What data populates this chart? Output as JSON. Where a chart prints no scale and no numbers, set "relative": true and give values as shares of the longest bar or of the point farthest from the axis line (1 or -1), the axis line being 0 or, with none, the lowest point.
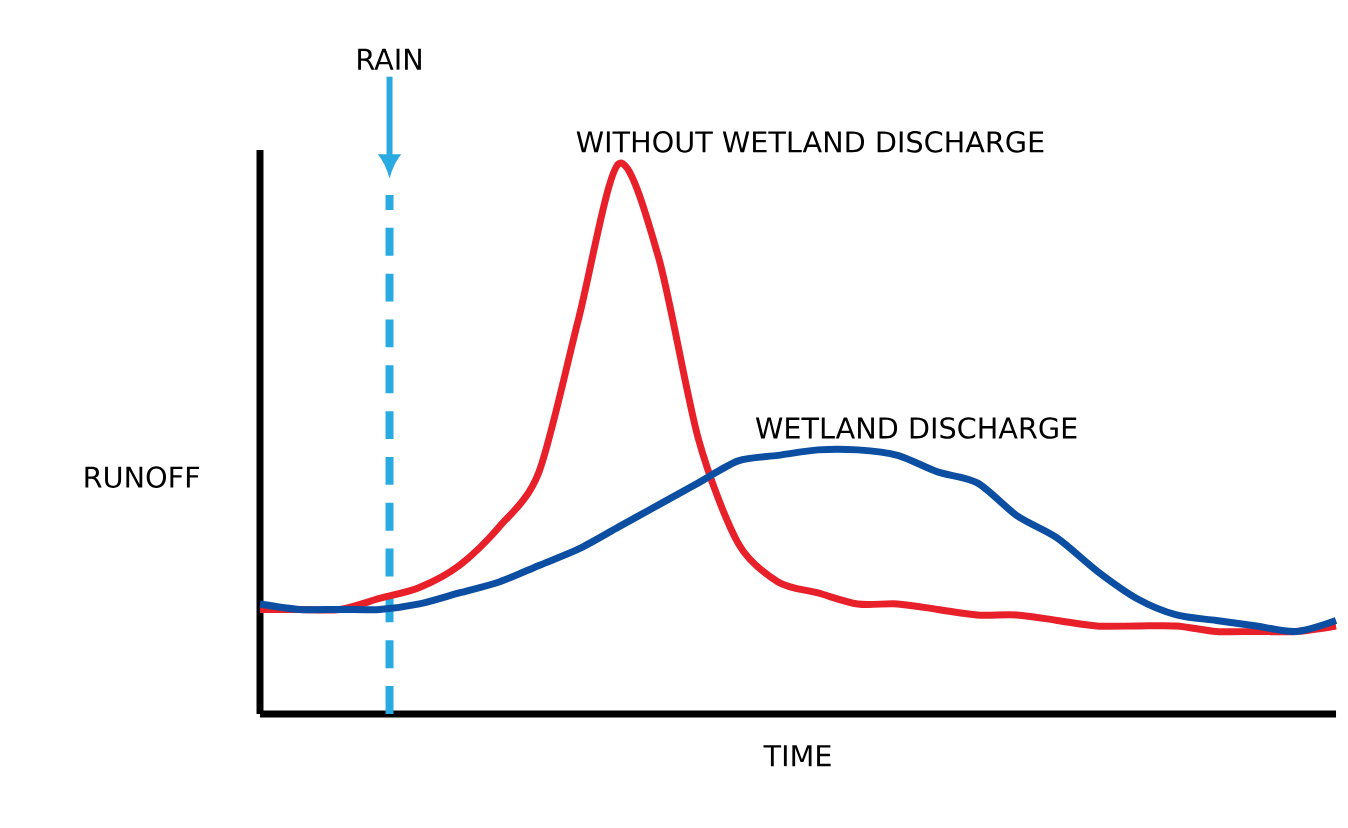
{
  "chart_data": {
    "type": "line",
    "relative": true,
    "xlabel": "TIME",
    "ylabel": "RUNOFF",
    "marker": "none",
    "legend": false,
    "annotations": [
      "RAIN"
    ],
    "categories": [
      null,
      null,
      null,
      null,
      null,
      null,
      null,
      null,
      null,
      null,
      null,
      null,
      null,
      null,
      null,
      null,
      null,
      null,
      null,
      null,
      null,
      null,
      null,
      null,
      null,
      null,
      null,
      null
    ],
    "series": [
      {
        "name": "WITHOUT WETLAND DISCHARGE",
        "color": "#e8202a",
        "values": [
          0.19,
          0.19,
          0.19,
          0.21,
          0.23,
          0.27,
          0.34,
          0.44,
          0.72,
          1,
          0.83,
          0.5,
          0.31,
          0.24,
          0.22,
          0.2,
          0.2,
          0.19,
          0.18,
          0.18,
          0.17,
          0.16,
          0.16,
          0.16,
          0.15,
          0.15,
          0.15,
          0.16
        ]
      },
      {
        "name": "WETLAND DISCHARGE",
        "color": "#0b4ea2",
        "values": [
          0.2,
          0.19,
          0.19,
          0.19,
          0.2,
          0.22,
          0.24,
          0.27,
          0.3,
          0.34,
          0.38,
          0.42,
          0.46,
          0.47,
          0.48,
          0.48,
          0.47,
          0.44,
          0.42,
          0.36,
          0.32,
          0.26,
          0.21,
          0.18,
          0.17,
          0.16,
          0.15,
          0.17
        ]
      }
    ]
  }
}
